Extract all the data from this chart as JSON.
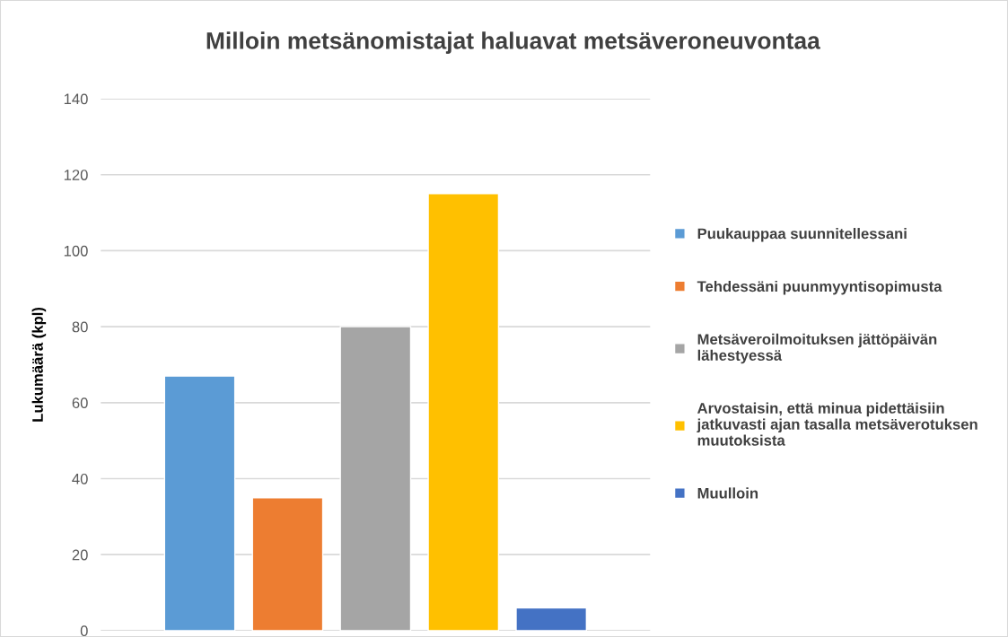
{
  "chart_data": {
    "type": "bar",
    "title": "Milloin metsänomistajat haluavat metsäveroneuvontaa",
    "ylabel": "Lukumäärä (kpl)",
    "categories": [
      null
    ],
    "series": [
      {
        "name": "Puukauppaa suunnitellessani",
        "color": "#5b9bd5",
        "values": [
          67
        ]
      },
      {
        "name": "Tehdessäni puunmyyntisopimusta",
        "color": "#ed7d31",
        "values": [
          35
        ]
      },
      {
        "name": "Metsäveroilmoituksen jättöpäivän\nlähestyessä",
        "color": "#a5a5a5",
        "values": [
          80
        ]
      },
      {
        "name": "Arvostaisin, että minua pidettäisiin\njatkuvasti ajan tasalla metsäverotuksen\nmuutoksista",
        "color": "#ffc000",
        "values": [
          115
        ]
      },
      {
        "name": "Muulloin",
        "color": "#4472c4",
        "values": [
          6
        ]
      }
    ],
    "ylim": [
      0,
      140
    ],
    "yticks": [
      0,
      20,
      40,
      60,
      80,
      100,
      120,
      140
    ],
    "grid": "y",
    "legend": "right"
  }
}
